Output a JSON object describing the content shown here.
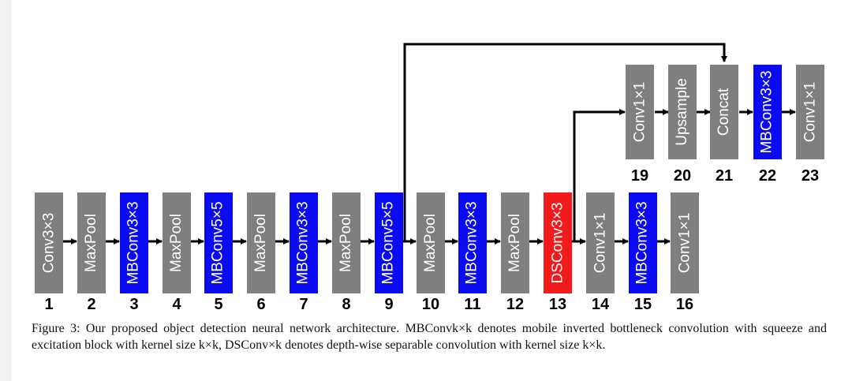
{
  "blocks": {
    "b1": {
      "label": "Conv3×3",
      "num": "1"
    },
    "b2": {
      "label": "MaxPool",
      "num": "2"
    },
    "b3": {
      "label": "MBConv3×3",
      "num": "3"
    },
    "b4": {
      "label": "MaxPool",
      "num": "4"
    },
    "b5": {
      "label": "MBConv5×5",
      "num": "5"
    },
    "b6": {
      "label": "MaxPool",
      "num": "6"
    },
    "b7": {
      "label": "MBConv3×3",
      "num": "7"
    },
    "b8": {
      "label": "MaxPool",
      "num": "8"
    },
    "b9": {
      "label": "MBConv5×5",
      "num": "9"
    },
    "b10": {
      "label": "MaxPool",
      "num": "10"
    },
    "b11": {
      "label": "MBConv3×3",
      "num": "11"
    },
    "b12": {
      "label": "MaxPool",
      "num": "12"
    },
    "b13": {
      "label": "DSConv3×3",
      "num": "13"
    },
    "b14": {
      "label": "Conv1×1",
      "num": "14"
    },
    "b15": {
      "label": "MBConv3×3",
      "num": "15"
    },
    "b16": {
      "label": "Conv1×1",
      "num": "16"
    },
    "b19": {
      "label": "Conv1×1",
      "num": "19"
    },
    "b20": {
      "label": "Upsample",
      "num": "20"
    },
    "b21": {
      "label": "Concat",
      "num": "21"
    },
    "b22": {
      "label": "MBConv3×3",
      "num": "22"
    },
    "b23": {
      "label": "Conv1×1",
      "num": "23"
    }
  },
  "colors": {
    "gray": "#7f7f7f",
    "blue": "#0b0bf2",
    "red": "#f21a1a"
  },
  "caption": "Figure 3: Our proposed object detection neural network architecture. MBConvk×k denotes mobile inverted bottleneck convolution with squeeze and excitation block with kernel size k×k, DSConv×k denotes depth-wise separable convolution with kernel size k×k."
}
